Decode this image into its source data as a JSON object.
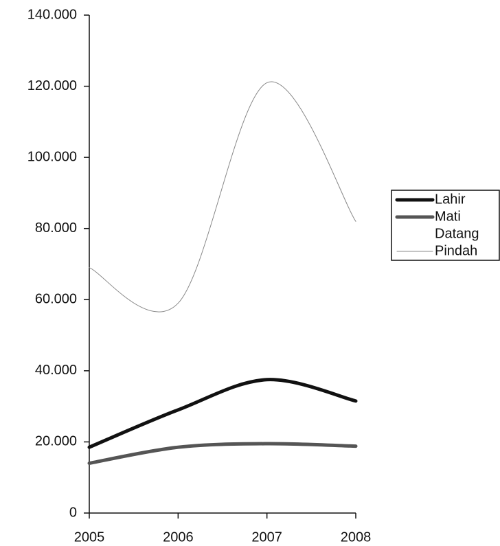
{
  "chart_data": {
    "type": "line",
    "x": [
      2005,
      2006,
      2007,
      2008
    ],
    "xlim": [
      2005,
      2008
    ],
    "xticks": [
      2005,
      2006,
      2007,
      2008
    ],
    "ylim": [
      0,
      140000
    ],
    "yticks": [
      0,
      {
        "value": 20000,
        "label": "20.000"
      },
      {
        "value": 40000,
        "label": "40.000"
      },
      {
        "value": 60000,
        "label": "60.000"
      },
      {
        "value": 80000,
        "label": "80.000"
      },
      {
        "value": 100000,
        "label": "100.000"
      },
      {
        "value": 120000,
        "label": "120.000"
      },
      {
        "value": 140000,
        "label": "140.000"
      }
    ],
    "smooth": true,
    "legend": "right",
    "series": [
      {
        "name": "Lahir",
        "color": "#111111",
        "width": 5,
        "values": [
          18500,
          29000,
          37500,
          31500
        ]
      },
      {
        "name": "Mati",
        "color": "#555555",
        "width": 5,
        "values": [
          14000,
          18500,
          19500,
          18800
        ]
      },
      {
        "name": "Datang",
        "color": "#ffffff",
        "width": 2,
        "values": [
          null,
          null,
          null,
          null
        ]
      },
      {
        "name": "Pindah",
        "color": "#888888",
        "width": 1,
        "values": [
          69000,
          59000,
          121000,
          82000
        ]
      }
    ]
  }
}
